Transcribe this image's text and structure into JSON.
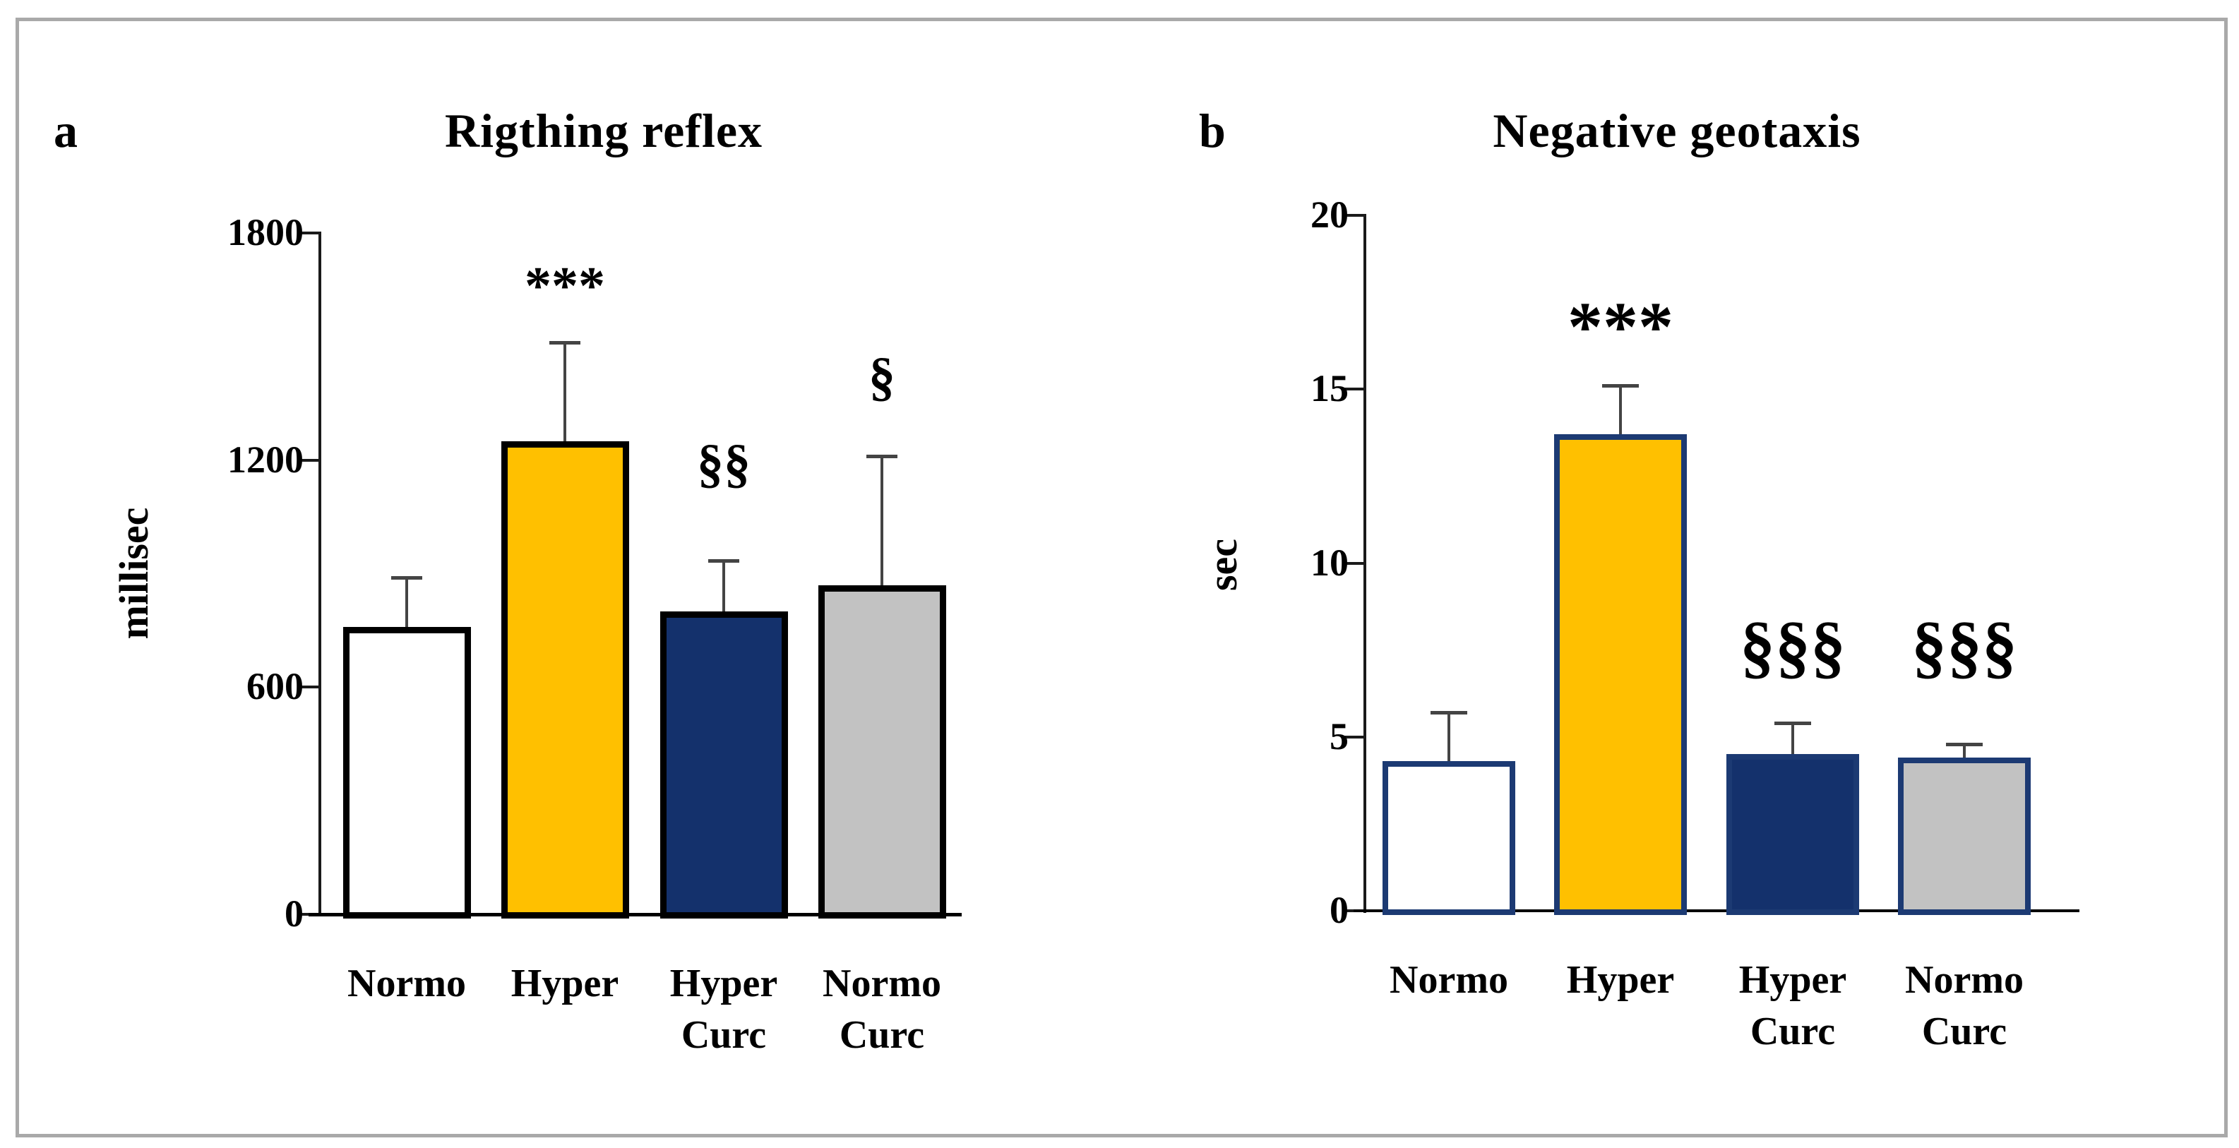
{
  "page": {
    "background": "#ffffff",
    "frame_color": "#a9a9a9"
  },
  "chart_data": [
    {
      "type": "bar",
      "panel_label": "a",
      "title": "Rigthing reflex",
      "ylabel": "millisec",
      "ylim": [
        0,
        1800
      ],
      "yticks": [
        0,
        600,
        1200,
        1800
      ],
      "categories": [
        [
          "Normo"
        ],
        [
          "Hyper"
        ],
        [
          "Hyper",
          "Curc"
        ],
        [
          "Normo",
          "Curc"
        ]
      ],
      "values": [
        760,
        1250,
        800,
        870
      ],
      "error_tops": [
        890,
        1510,
        935,
        1210
      ],
      "annotations": [
        "",
        "***",
        "§§",
        "§"
      ],
      "annotation_y": [
        null,
        1660,
        1190,
        1420
      ],
      "bar_fills": [
        "#FFFFFF",
        "#FFC000",
        "#14316C",
        "#C2C2C2"
      ],
      "bar_border_color": "#000000",
      "axis_color": "#1a1a1a",
      "error_color": "#444444",
      "grid": "off",
      "legend": "none"
    },
    {
      "type": "bar",
      "panel_label": "b",
      "title": "Negative geotaxis",
      "ylabel": "sec",
      "ylim": [
        0,
        20
      ],
      "yticks": [
        0,
        5,
        10,
        15,
        20
      ],
      "categories": [
        [
          "Normo"
        ],
        [
          "Hyper"
        ],
        [
          "Hyper",
          "Curc"
        ],
        [
          "Normo",
          "Curc"
        ]
      ],
      "values": [
        4.3,
        13.7,
        4.5,
        4.4
      ],
      "error_tops": [
        5.7,
        15.1,
        5.4,
        4.8
      ],
      "annotations": [
        "",
        "***",
        "§§§",
        "§§§"
      ],
      "annotation_y": [
        null,
        16.8,
        7.6,
        7.6
      ],
      "bar_fills": [
        "#FFFFFF",
        "#FFC000",
        "#14316C",
        "#C2C2C2"
      ],
      "bar_border_color": "#1C3A73",
      "axis_color": "#1a1a1a",
      "error_color": "#444444",
      "grid": "off",
      "legend": "none"
    }
  ]
}
